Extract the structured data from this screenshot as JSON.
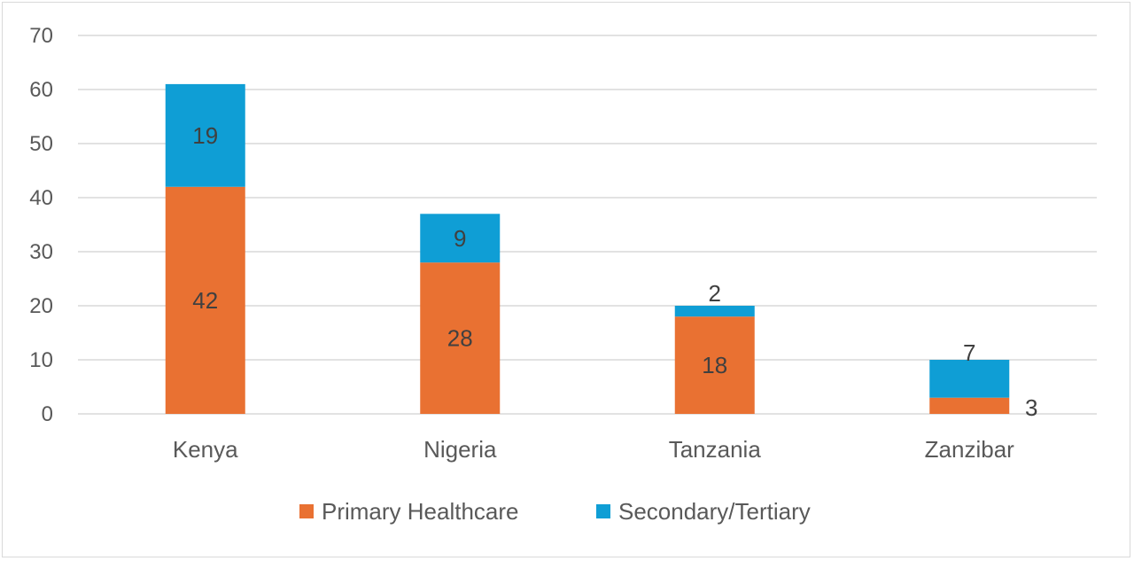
{
  "chart_data": {
    "type": "bar",
    "stacked": true,
    "categories": [
      "Kenya",
      "Nigeria",
      "Tanzania",
      "Zanzibar"
    ],
    "series": [
      {
        "name": "Primary Healthcare",
        "values": [
          42,
          28,
          18,
          3
        ],
        "color": "#E97132"
      },
      {
        "name": "Secondary/Tertiary",
        "values": [
          19,
          9,
          2,
          7
        ],
        "color": "#0F9ED5"
      }
    ],
    "ylim": [
      0,
      70
    ],
    "yticks": [
      0,
      10,
      20,
      30,
      40,
      50,
      60,
      70
    ],
    "grid": true,
    "legend_position": "bottom",
    "title": "",
    "xlabel": "",
    "ylabel": ""
  }
}
